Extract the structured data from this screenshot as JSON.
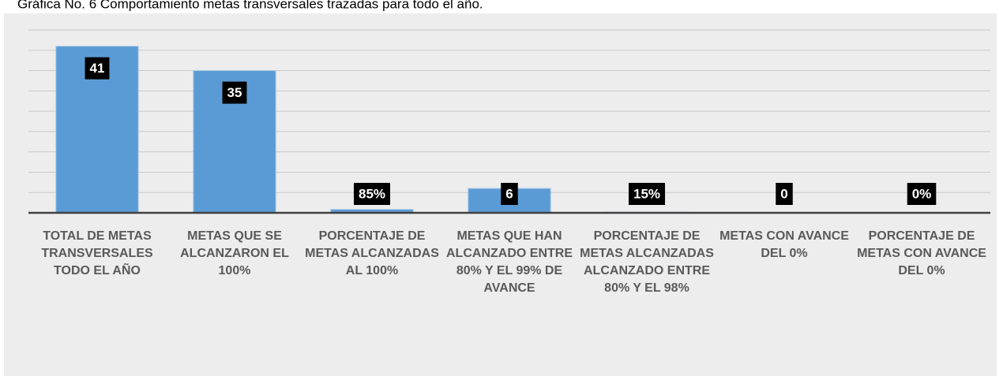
{
  "chart_data": {
    "type": "bar",
    "title": "Gráfica No. 6 Comportamiento metas transversales trazadas para todo el año.",
    "categories": [
      "TOTAL DE METAS TRANSVERSALES TODO EL AÑO",
      "METAS QUE SE ALCANZARON EL 100%",
      "PORCENTAJE DE METAS ALCANZADAS AL 100%",
      "METAS QUE HAN ALCANZADO ENTRE 80% Y EL 99% DE AVANCE",
      "PORCENTAJE DE METAS ALCANZADAS ALCANZADO ENTRE 80% Y EL 98%",
      "METAS CON AVANCE DEL 0%",
      "PORCENTAJE DE METAS CON AVANCE DEL 0%"
    ],
    "values": [
      41,
      35,
      0.85,
      6,
      0.15,
      0,
      0
    ],
    "value_labels": [
      "41",
      "35",
      "85%",
      "6",
      "15%",
      "0",
      "0%"
    ],
    "color": "#5b9bd5",
    "ylim": [
      0,
      45
    ],
    "yticks": [
      0,
      5,
      10,
      15,
      20,
      25,
      30,
      35,
      40,
      45
    ],
    "grid": true
  }
}
